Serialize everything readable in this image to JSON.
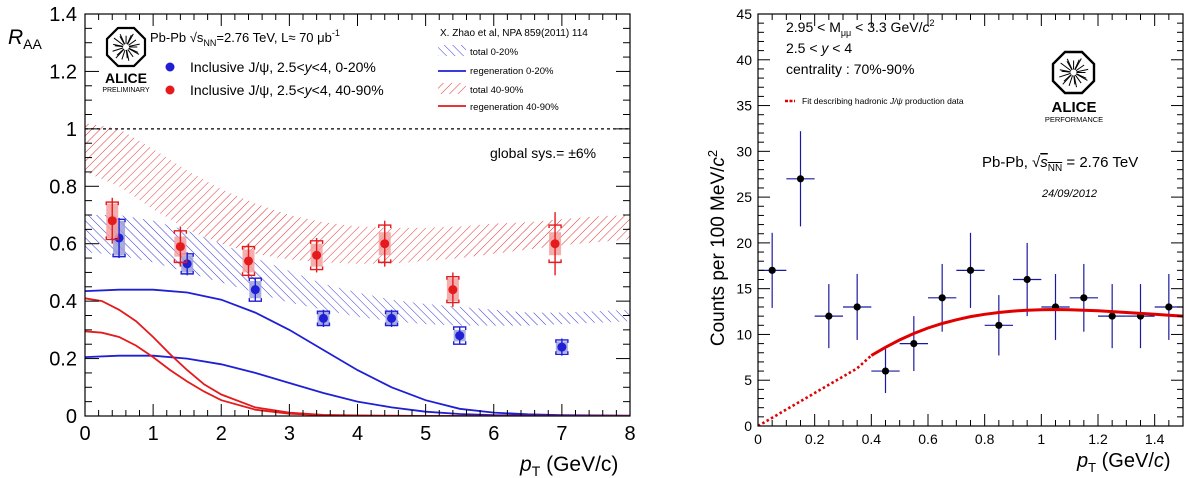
{
  "colors": {
    "central": "#1f1fd6",
    "peripheral": "#e41a1c",
    "peripheral_box": "#f2a0a0",
    "central_box": "#9aa0d8",
    "fit": "#e00000",
    "points": "#000000",
    "errbar_right": "#1a1aa0"
  },
  "chart_data": [
    {
      "type": "scatter",
      "ylabel": "R",
      "ylabel_sub": "AA",
      "xlabel": "p",
      "xlabel_sub": "T",
      "xlabel_unit": " (GeV/c)",
      "xlim": [
        0,
        8
      ],
      "ylim": [
        0,
        1.4
      ],
      "x_ticks": [
        0,
        1,
        2,
        3,
        4,
        5,
        6,
        7,
        8
      ],
      "y_ticks": [
        0,
        0.2,
        0.4,
        0.6,
        0.8,
        1,
        1.2,
        1.4
      ],
      "x_tick_labels": [
        "0",
        "1",
        "2",
        "3",
        "4",
        "5",
        "6",
        "7",
        "8"
      ],
      "y_tick_labels": [
        "0",
        "0.2",
        "0.4",
        "0.6",
        "0.8",
        "1",
        "1.2",
        "1.4"
      ],
      "reference_line": 1,
      "logo": {
        "name": "ALICE",
        "tag": "PRELIMINARY"
      },
      "header": {
        "system": "Pb-Pb ",
        "energy_sym": "√s",
        "energy_sub": "NN",
        "energy_val": "=2.76 TeV, L≈ 70 μb",
        "lumi_sup": "-1"
      },
      "legend_data": [
        {
          "label_a": "Inclusive J/ψ, 2.5<",
          "label_var": "y",
          "label_b": "<4, 0-20%",
          "color": "#1f1fd6"
        },
        {
          "label_a": "Inclusive J/ψ, 2.5<",
          "label_var": "y",
          "label_b": "<4, 40-90%",
          "color": "#e41a1c"
        }
      ],
      "model_reference": "X. Zhao et al, NPA 859(2011) 114",
      "legend_model": [
        {
          "label": "total 0-20%",
          "style": "hatch",
          "color": "#1f1fd6"
        },
        {
          "label": "regeneration 0-20%",
          "style": "line",
          "color": "#1f1fd6"
        },
        {
          "label": "total 40-90%",
          "style": "hatch",
          "color": "#e41a1c"
        },
        {
          "label": "regeneration 40-90%",
          "style": "line",
          "color": "#e41a1c"
        }
      ],
      "global_sys": "global sys.= ±6%",
      "series": [
        {
          "name": "Inclusive J/ψ, 2.5<y<4, 0-20%",
          "color": "#1f1fd6",
          "x": [
            0.5,
            1.5,
            2.5,
            3.5,
            4.5,
            5.5,
            7.0
          ],
          "y": [
            0.62,
            0.53,
            0.44,
            0.34,
            0.34,
            0.28,
            0.24
          ],
          "stat_err": [
            0.07,
            0.04,
            0.04,
            0.03,
            0.03,
            0.03,
            0.03
          ],
          "sys_err": [
            0.065,
            0.035,
            0.04,
            0.025,
            0.025,
            0.03,
            0.025
          ],
          "box_err": [
            0.06,
            0.03,
            0.03,
            0.025,
            0.025,
            0.02,
            0.02
          ]
        },
        {
          "name": "Inclusive J/ψ, 2.5<y<4, 40-90%",
          "color": "#e41a1c",
          "x": [
            0.4,
            1.4,
            2.4,
            3.4,
            4.4,
            5.4,
            6.9
          ],
          "y": [
            0.68,
            0.59,
            0.54,
            0.56,
            0.6,
            0.44,
            0.6
          ],
          "stat_err": [
            0.08,
            0.07,
            0.06,
            0.06,
            0.08,
            0.06,
            0.11
          ],
          "sys_err": [
            0.065,
            0.055,
            0.05,
            0.05,
            0.065,
            0.045,
            0.065
          ],
          "box_err": [
            0.06,
            0.035,
            0.04,
            0.04,
            0.04,
            0.04,
            0.04
          ]
        }
      ],
      "models": {
        "total_central_band": {
          "x": [
            0,
            0.5,
            1,
            1.5,
            2,
            2.5,
            3,
            3.5,
            4,
            4.5,
            5,
            5.5,
            6,
            6.5,
            7,
            7.5,
            8
          ],
          "y_low": [
            0.57,
            0.56,
            0.535,
            0.5,
            0.465,
            0.43,
            0.395,
            0.37,
            0.345,
            0.33,
            0.32,
            0.315,
            0.315,
            0.315,
            0.32,
            0.325,
            0.33
          ],
          "y_high": [
            0.7,
            0.7,
            0.68,
            0.645,
            0.6,
            0.55,
            0.505,
            0.46,
            0.43,
            0.405,
            0.39,
            0.38,
            0.37,
            0.36,
            0.36,
            0.365,
            0.37
          ]
        },
        "total_peripheral_band": {
          "x": [
            0,
            0.5,
            1,
            1.5,
            2,
            2.5,
            3,
            3.5,
            4,
            4.5,
            5,
            5.5,
            6,
            6.5,
            7,
            7.5,
            8
          ],
          "y_low": [
            0.85,
            0.8,
            0.72,
            0.65,
            0.6,
            0.565,
            0.545,
            0.535,
            0.53,
            0.53,
            0.54,
            0.55,
            0.565,
            0.58,
            0.595,
            0.605,
            0.615
          ],
          "y_high": [
            1.02,
            1.0,
            0.93,
            0.855,
            0.79,
            0.74,
            0.7,
            0.675,
            0.66,
            0.655,
            0.655,
            0.66,
            0.67,
            0.675,
            0.685,
            0.695,
            0.7
          ]
        },
        "regen_central_a": {
          "x": [
            0,
            0.5,
            1,
            1.5,
            2,
            2.5,
            3,
            3.5,
            4,
            4.5,
            5,
            5.5,
            6,
            6.5,
            7,
            7.5,
            8
          ],
          "y": [
            0.435,
            0.44,
            0.44,
            0.43,
            0.405,
            0.36,
            0.3,
            0.23,
            0.16,
            0.1,
            0.055,
            0.025,
            0.012,
            0.006,
            0.003,
            0.002,
            0.001
          ]
        },
        "regen_central_b": {
          "x": [
            0,
            0.5,
            1,
            1.5,
            2,
            2.5,
            3,
            3.5,
            4,
            4.5,
            5,
            5.5,
            6,
            6.5,
            7,
            7.5,
            8
          ],
          "y": [
            0.205,
            0.21,
            0.21,
            0.2,
            0.18,
            0.15,
            0.115,
            0.08,
            0.05,
            0.03,
            0.015,
            0.007,
            0.003,
            0.002,
            0.001,
            0.001,
            0.0
          ]
        },
        "regen_peripheral_a": {
          "x": [
            0,
            0.25,
            0.5,
            0.75,
            1,
            1.25,
            1.5,
            1.75,
            2,
            2.5,
            3,
            3.5,
            4,
            4.5,
            5,
            6,
            7,
            8
          ],
          "y": [
            0.41,
            0.4,
            0.37,
            0.33,
            0.275,
            0.215,
            0.16,
            0.11,
            0.075,
            0.03,
            0.012,
            0.004,
            0.002,
            0.001,
            0.0,
            0.0,
            0.0,
            0.0
          ]
        },
        "regen_peripheral_b": {
          "x": [
            0,
            0.25,
            0.5,
            0.75,
            1,
            1.25,
            1.5,
            1.75,
            2,
            2.5,
            3,
            3.5,
            4,
            4.5,
            5,
            6,
            7,
            8
          ],
          "y": [
            0.295,
            0.29,
            0.275,
            0.245,
            0.205,
            0.16,
            0.12,
            0.085,
            0.055,
            0.022,
            0.008,
            0.003,
            0.001,
            0.0,
            0.0,
            0.0,
            0.0,
            0.0
          ]
        }
      }
    },
    {
      "type": "scatter",
      "ylabel": "Counts per 100 MeV/",
      "ylabel_var": "c",
      "ylabel_sup": "2",
      "xlabel": "p",
      "xlabel_sub": "T",
      "xlabel_unit_a": " (GeV/",
      "xlabel_unit_var": "c",
      "xlabel_unit_b": ")",
      "xlim": [
        0,
        1.5
      ],
      "ylim": [
        0,
        45
      ],
      "x_ticks": [
        0,
        0.2,
        0.4,
        0.6,
        0.8,
        1,
        1.2,
        1.4
      ],
      "y_ticks": [
        0,
        5,
        10,
        15,
        20,
        25,
        30,
        35,
        40,
        45
      ],
      "x_tick_labels": [
        "0",
        "0.2",
        "0.4",
        "0.6",
        "0.8",
        "1",
        "1.2",
        "1.4"
      ],
      "y_tick_labels": [
        "0",
        "5",
        "10",
        "15",
        "20",
        "25",
        "30",
        "35",
        "40",
        "45"
      ],
      "text_lines": {
        "mass_a": "2.95 < M",
        "mass_sub": "μμ",
        "mass_b": " < 3.3 GeV/",
        "mass_var": "c",
        "mass_sup": "2",
        "rap_a": "2.5 < ",
        "rap_var": "y",
        "rap_b": " < 4",
        "centrality": "centrality : 70%-90%"
      },
      "fit_legend_a": "Fit describing hadronic ",
      "fit_legend_var": "J/ψ",
      "fit_legend_b": " production data",
      "logo": {
        "name": "ALICE",
        "tag": "PERFORMANCE"
      },
      "system_a": "Pb-Pb, ",
      "system_sqrt": "s",
      "system_sub": "NN",
      "system_b": " = 2.76 TeV",
      "date": "24/09/2012",
      "points": {
        "x": [
          0.05,
          0.15,
          0.25,
          0.35,
          0.45,
          0.55,
          0.65,
          0.75,
          0.85,
          0.95,
          1.05,
          1.15,
          1.25,
          1.35,
          1.45
        ],
        "y": [
          17,
          27,
          12,
          13,
          6,
          9,
          14,
          17,
          11,
          16,
          13,
          14,
          12,
          12,
          13
        ],
        "y_err": [
          4.1,
          5.2,
          3.5,
          3.6,
          2.4,
          3.0,
          3.7,
          4.1,
          3.3,
          4.0,
          3.6,
          3.7,
          3.5,
          3.5,
          3.6
        ],
        "x_err": 0.05
      },
      "fit": {
        "x": [
          0,
          0.05,
          0.1,
          0.15,
          0.2,
          0.25,
          0.3,
          0.35,
          0.4,
          0.45,
          0.5,
          0.55,
          0.6,
          0.65,
          0.7,
          0.75,
          0.8,
          0.85,
          0.9,
          0.95,
          1.0,
          1.05,
          1.1,
          1.15,
          1.2,
          1.25,
          1.3,
          1.35,
          1.4,
          1.45,
          1.5
        ],
        "y": [
          0,
          0.9,
          1.8,
          2.7,
          3.6,
          4.5,
          5.4,
          6.3,
          7.7,
          8.6,
          9.4,
          10.1,
          10.7,
          11.2,
          11.6,
          11.95,
          12.2,
          12.4,
          12.55,
          12.65,
          12.7,
          12.72,
          12.7,
          12.65,
          12.58,
          12.5,
          12.4,
          12.3,
          12.2,
          12.1,
          12.0
        ],
        "dotted_until": 0.4
      }
    }
  ]
}
